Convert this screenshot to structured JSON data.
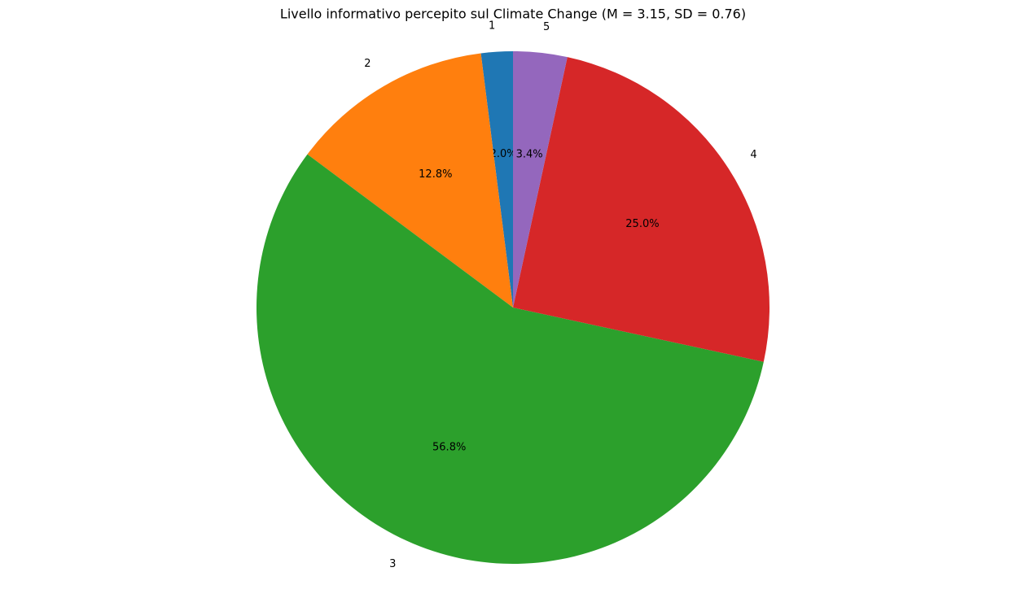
{
  "chart_data": {
    "type": "pie",
    "title": "Livello informativo percepito sul Climate Change (M = 3.15, SD = 0.76)",
    "categories": [
      "1",
      "2",
      "3",
      "4",
      "5"
    ],
    "values": [
      2.0,
      12.8,
      56.8,
      25.0,
      3.4
    ],
    "value_labels": [
      "2.0%",
      "12.8%",
      "56.8%",
      "25.0%",
      "3.4%"
    ],
    "colors": [
      "#1f77b4",
      "#ff7f0e",
      "#2ca02c",
      "#d62728",
      "#9467bd"
    ]
  }
}
